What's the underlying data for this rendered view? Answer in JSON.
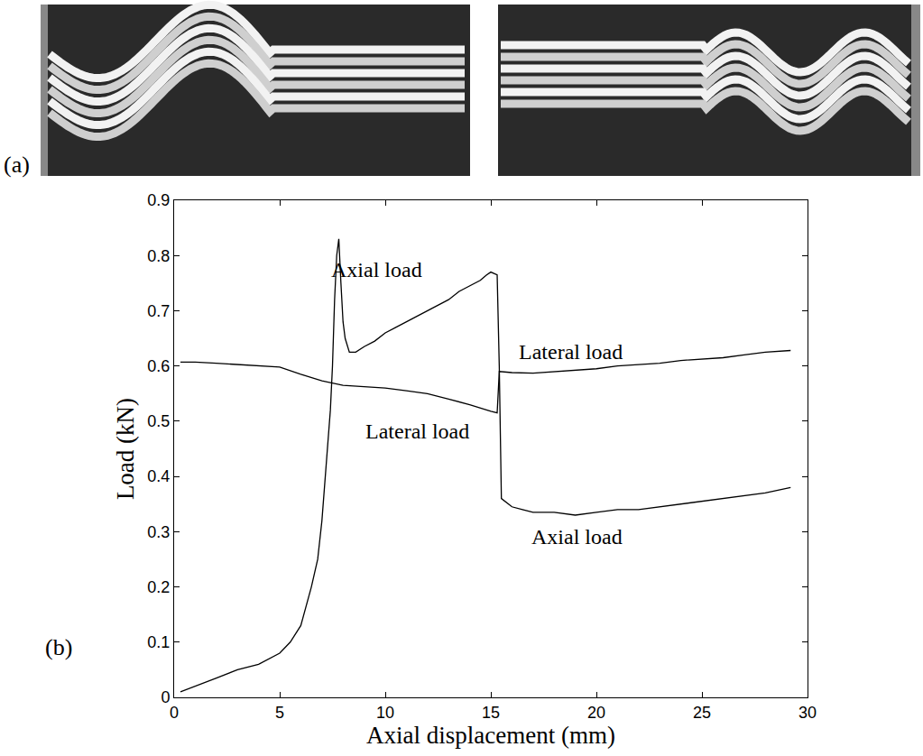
{
  "panels": {
    "a": "(a)",
    "b": "(b)"
  },
  "chart_data": {
    "type": "line",
    "x_label": "Axial displacement (mm)",
    "y_label": "Load (kN)",
    "xlim": [
      0,
      30
    ],
    "xticks": [
      0,
      5,
      10,
      15,
      20,
      25,
      30
    ],
    "ylim": [
      0,
      0.9
    ],
    "yticks": [
      0,
      0.1,
      0.2,
      0.3,
      0.4,
      0.5,
      0.6,
      0.7,
      0.8,
      0.9
    ],
    "grid": false,
    "series": [
      {
        "name": "Axial load",
        "color": "#000000",
        "x": [
          0.3,
          1,
          2,
          3,
          4,
          5,
          5.5,
          6,
          6.5,
          6.8,
          7,
          7.2,
          7.4,
          7.5,
          7.6,
          7.7,
          7.8,
          7.9,
          8.0,
          8.1,
          8.3,
          8.6,
          9,
          9.5,
          10,
          10.5,
          11,
          12,
          13,
          13.5,
          14,
          14.5,
          14.8,
          15.0,
          15.3,
          15.4,
          15.5,
          16,
          16.5,
          17,
          18,
          19,
          20,
          21,
          22,
          23,
          24,
          25,
          26,
          27,
          28,
          29.2
        ],
        "values": [
          0.01,
          0.02,
          0.035,
          0.05,
          0.06,
          0.08,
          0.1,
          0.13,
          0.2,
          0.25,
          0.32,
          0.42,
          0.52,
          0.6,
          0.72,
          0.8,
          0.83,
          0.75,
          0.68,
          0.65,
          0.625,
          0.625,
          0.635,
          0.645,
          0.66,
          0.67,
          0.68,
          0.7,
          0.72,
          0.735,
          0.745,
          0.755,
          0.765,
          0.77,
          0.765,
          0.6,
          0.36,
          0.345,
          0.34,
          0.335,
          0.335,
          0.33,
          0.335,
          0.34,
          0.34,
          0.345,
          0.35,
          0.355,
          0.36,
          0.365,
          0.37,
          0.38
        ]
      },
      {
        "name": "Lateral load",
        "color": "#000000",
        "x": [
          0.3,
          1,
          2,
          3,
          4,
          5,
          6,
          7,
          8,
          9,
          10,
          11,
          12,
          13,
          14,
          15,
          15.3,
          15.4,
          16,
          17,
          18,
          19,
          20,
          21,
          22,
          23,
          24,
          25,
          26,
          27,
          28,
          29.2
        ],
        "values": [
          0.607,
          0.607,
          0.605,
          0.603,
          0.6,
          0.598,
          0.585,
          0.573,
          0.565,
          0.562,
          0.56,
          0.555,
          0.55,
          0.54,
          0.53,
          0.518,
          0.515,
          0.59,
          0.588,
          0.587,
          0.59,
          0.592,
          0.595,
          0.6,
          0.602,
          0.605,
          0.61,
          0.612,
          0.615,
          0.62,
          0.625,
          0.628
        ]
      }
    ],
    "annotations": [
      {
        "text": "Axial load",
        "x": 9.6,
        "y": 0.775
      },
      {
        "text": "Lateral load",
        "x": 18.8,
        "y": 0.625
      },
      {
        "text": "Lateral load",
        "x": 11.5,
        "y": 0.482
      },
      {
        "text": "Axial load",
        "x": 19.1,
        "y": 0.29
      }
    ]
  }
}
